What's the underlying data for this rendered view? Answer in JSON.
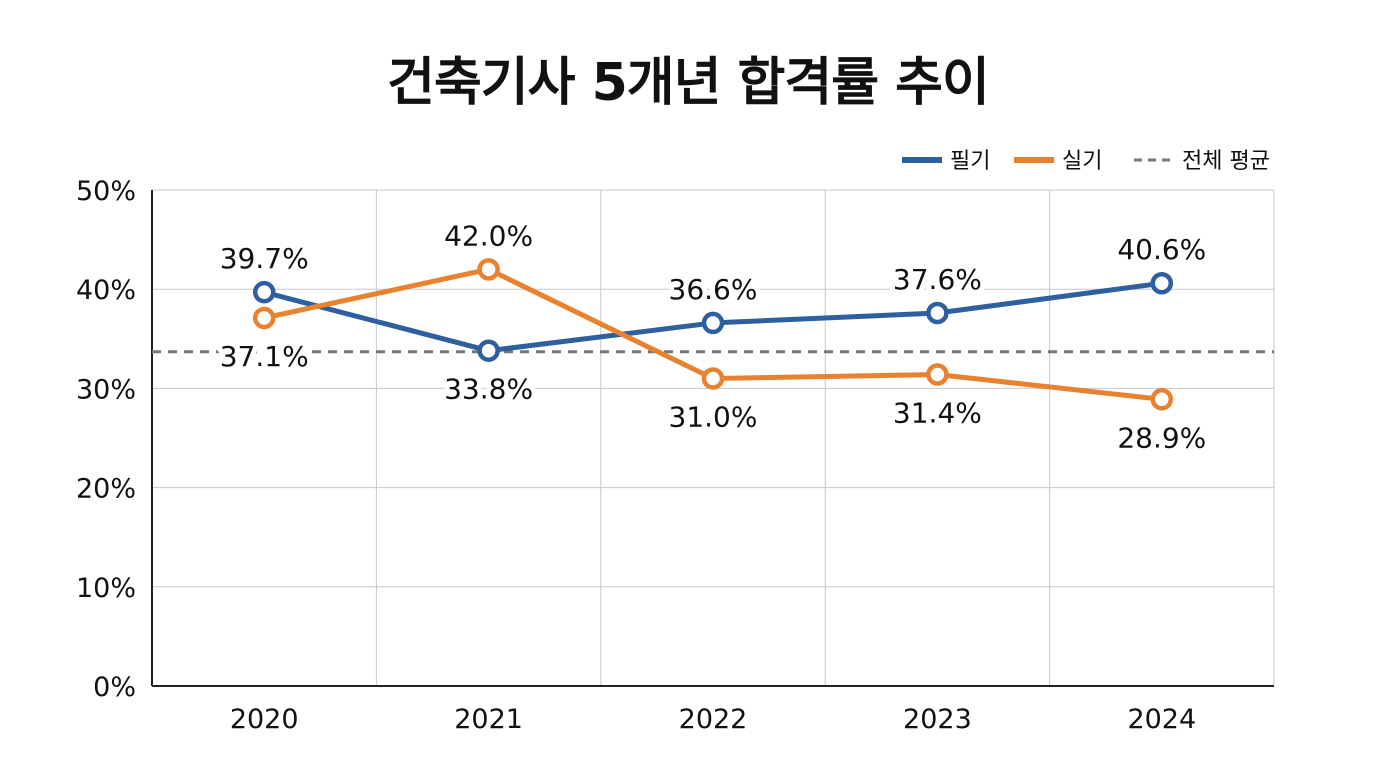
{
  "chart_data": {
    "type": "line",
    "title": "건축기사 5개년 합격률 추이",
    "xlabel": "",
    "ylabel": "",
    "categories": [
      "2020",
      "2021",
      "2022",
      "2023",
      "2024"
    ],
    "ylim": [
      0,
      50
    ],
    "y_ticks": [
      0,
      10,
      20,
      30,
      40,
      50
    ],
    "y_tick_labels": [
      "0%",
      "10%",
      "20%",
      "30%",
      "40%",
      "50%"
    ],
    "grid": true,
    "legend_position": "top-right",
    "series": [
      {
        "name": "필기",
        "color": "#2e5f9e",
        "values": [
          39.7,
          33.8,
          36.6,
          37.6,
          40.6
        ],
        "labels": [
          "39.7%",
          "33.8%",
          "36.6%",
          "37.6%",
          "40.6%"
        ],
        "label_side": [
          "above",
          "below",
          "above",
          "above",
          "above"
        ]
      },
      {
        "name": "실기",
        "color": "#e8822f",
        "values": [
          37.1,
          42.0,
          31.0,
          31.4,
          28.9
        ],
        "labels": [
          "37.1%",
          "42.0%",
          "31.0%",
          "31.4%",
          "28.9%"
        ],
        "label_side": [
          "below",
          "above",
          "below",
          "below",
          "below"
        ]
      }
    ],
    "reference_lines": [
      {
        "name": "전체 평균",
        "value": 33.7,
        "style": "dashed",
        "color": "#777777"
      }
    ]
  }
}
